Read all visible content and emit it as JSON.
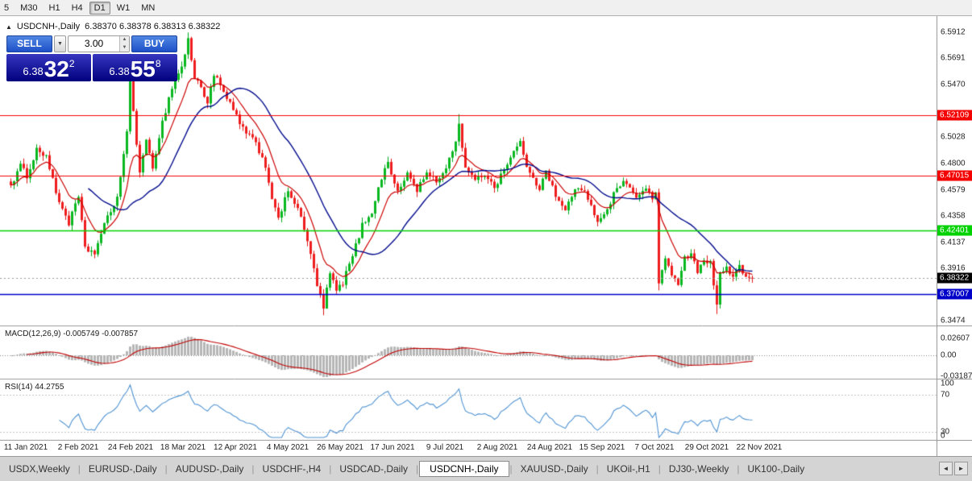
{
  "toolbar": {
    "timeframes": [
      {
        "label": "5",
        "active": false
      },
      {
        "label": "M30",
        "active": false
      },
      {
        "label": "H1",
        "active": false
      },
      {
        "label": "H4",
        "active": false
      },
      {
        "label": "D1",
        "active": true
      },
      {
        "label": "W1",
        "active": false
      },
      {
        "label": "MN",
        "active": false
      }
    ]
  },
  "chart_header": {
    "marker": "▲",
    "symbol": "USDCNH-,Daily",
    "ohlc": "6.38370 6.38378 6.38313 6.38322"
  },
  "trade_panel": {
    "sell_label": "SELL",
    "buy_label": "BUY",
    "volume": "3.00",
    "icons": {
      "dropdown": "▼",
      "up": "▲",
      "down": "▼"
    },
    "bid": {
      "small": "6.38",
      "big": "32",
      "sup": "2"
    },
    "ask": {
      "small": "6.38",
      "big": "55",
      "sup": "8"
    }
  },
  "price_axis": {
    "labels": [
      "6.5912",
      "6.5691",
      "6.5470",
      "6.5028",
      "6.4800",
      "6.4579",
      "6.4358",
      "6.4137",
      "6.3916",
      "6.3474"
    ]
  },
  "levels": [
    {
      "label": "6.52109",
      "value": 6.52109,
      "color": "#f40000",
      "width": 1.2
    },
    {
      "label": "6.47015",
      "value": 6.47015,
      "color": "#f40000",
      "width": 1.2
    },
    {
      "label": "6.42401",
      "value": 6.42401,
      "color": "#00d200",
      "width": 1.6
    },
    {
      "label": "6.37007",
      "value": 6.37007,
      "color": "#0000c8",
      "width": 1.6
    }
  ],
  "current_price": {
    "label": "6.38322",
    "value": 6.38322,
    "color": "#000000"
  },
  "macd": {
    "label": "MACD(12,26,9) -0.005749 -0.007857",
    "axis": [
      "0.02607",
      "0.00",
      "-0.03187"
    ],
    "axis_values": [
      0.02607,
      0,
      -0.03187
    ]
  },
  "rsi": {
    "label": "RSI(14) 44.2755",
    "axis": [
      "100",
      "70",
      "30",
      "0"
    ],
    "axis_values": [
      100,
      70,
      30,
      0
    ]
  },
  "date_axis": [
    "11 Jan 2021",
    "2 Feb 2021",
    "24 Feb 2021",
    "18 Mar 2021",
    "12 Apr 2021",
    "4 May 2021",
    "26 May 2021",
    "17 Jun 2021",
    "9 Jul 2021",
    "2 Aug 2021",
    "24 Aug 2021",
    "15 Sep 2021",
    "7 Oct 2021",
    "29 Oct 2021",
    "22 Nov 2021"
  ],
  "tabs": [
    {
      "label": "USDX,Weekly",
      "active": false
    },
    {
      "label": "EURUSD-,Daily",
      "active": false
    },
    {
      "label": "AUDUSD-,Daily",
      "active": false
    },
    {
      "label": "USDCHF-,H4",
      "active": false
    },
    {
      "label": "USDCAD-,Daily",
      "active": false
    },
    {
      "label": "USDCNH-,Daily",
      "active": true
    },
    {
      "label": "XAUUSD-,Daily",
      "active": false
    },
    {
      "label": "UKOil-,H1",
      "active": false
    },
    {
      "label": "DJ30-,Weekly",
      "active": false
    },
    {
      "label": "UK100-,Daily",
      "active": false
    }
  ],
  "tabbar_controls": {
    "left_arrow": "◄",
    "right_arrow": "►"
  },
  "chart_data": {
    "type": "candlestick",
    "symbol": "USDCNH-",
    "timeframe": "Daily",
    "visible_range": [
      6.3474,
      6.5912
    ],
    "anchors": [
      [
        0,
        6.462
      ],
      [
        3,
        6.478
      ],
      [
        5,
        6.47
      ],
      [
        8,
        6.492
      ],
      [
        11,
        6.487
      ],
      [
        14,
        6.455
      ],
      [
        18,
        6.43
      ],
      [
        21,
        6.452
      ],
      [
        23,
        6.408
      ],
      [
        26,
        6.405
      ],
      [
        29,
        6.428
      ],
      [
        33,
        6.452
      ],
      [
        36,
        6.505
      ],
      [
        37,
        6.552
      ],
      [
        38,
        6.525
      ],
      [
        40,
        6.472
      ],
      [
        42,
        6.498
      ],
      [
        44,
        6.478
      ],
      [
        47,
        6.515
      ],
      [
        50,
        6.545
      ],
      [
        53,
        6.562
      ],
      [
        55,
        6.585
      ],
      [
        57,
        6.552
      ],
      [
        59,
        6.545
      ],
      [
        61,
        6.532
      ],
      [
        63,
        6.556
      ],
      [
        66,
        6.54
      ],
      [
        70,
        6.52
      ],
      [
        73,
        6.505
      ],
      [
        76,
        6.498
      ],
      [
        79,
        6.478
      ],
      [
        81,
        6.452
      ],
      [
        83,
        6.432
      ],
      [
        86,
        6.458
      ],
      [
        89,
        6.442
      ],
      [
        92,
        6.415
      ],
      [
        95,
        6.378
      ],
      [
        97,
        6.358
      ],
      [
        99,
        6.388
      ],
      [
        101,
        6.372
      ],
      [
        103,
        6.38
      ],
      [
        106,
        6.402
      ],
      [
        109,
        6.428
      ],
      [
        112,
        6.44
      ],
      [
        115,
        6.468
      ],
      [
        117,
        6.482
      ],
      [
        120,
        6.455
      ],
      [
        123,
        6.472
      ],
      [
        126,
        6.458
      ],
      [
        129,
        6.472
      ],
      [
        132,
        6.465
      ],
      [
        134,
        6.472
      ],
      [
        137,
        6.49
      ],
      [
        139,
        6.512
      ],
      [
        141,
        6.478
      ],
      [
        144,
        6.465
      ],
      [
        147,
        6.472
      ],
      [
        150,
        6.46
      ],
      [
        153,
        6.476
      ],
      [
        156,
        6.49
      ],
      [
        158,
        6.498
      ],
      [
        161,
        6.47
      ],
      [
        164,
        6.46
      ],
      [
        166,
        6.476
      ],
      [
        169,
        6.452
      ],
      [
        172,
        6.44
      ],
      [
        175,
        6.46
      ],
      [
        178,
        6.455
      ],
      [
        182,
        6.432
      ],
      [
        185,
        6.442
      ],
      [
        188,
        6.46
      ],
      [
        191,
        6.465
      ],
      [
        194,
        6.45
      ],
      [
        197,
        6.46
      ],
      [
        199,
        6.452
      ],
      [
        200,
        6.455
      ],
      [
        201,
        6.378
      ],
      [
        203,
        6.398
      ],
      [
        205,
        6.388
      ],
      [
        207,
        6.38
      ],
      [
        209,
        6.4
      ],
      [
        211,
        6.405
      ],
      [
        213,
        6.39
      ],
      [
        215,
        6.396
      ],
      [
        217,
        6.4
      ],
      [
        218,
        6.378
      ],
      [
        219,
        6.362
      ],
      [
        220,
        6.386
      ],
      [
        222,
        6.392
      ],
      [
        224,
        6.384
      ],
      [
        226,
        6.392
      ],
      [
        228,
        6.385
      ],
      [
        230,
        6.3832
      ]
    ],
    "wick_overrides": {
      "37": {
        "h": 6.573
      },
      "38": {
        "h": 6.562
      },
      "55": {
        "h": 6.591
      },
      "97": {
        "l": 6.352
      },
      "139": {
        "h": 6.522
      },
      "201": {
        "h": 6.459,
        "l": 6.373
      },
      "219": {
        "l": 6.353
      }
    },
    "colors": {
      "up": "#09b81f",
      "up_border": "#00a81e",
      "down": "#ef1d1d",
      "down_border": "#e01616",
      "ma_fast": "#cc0000",
      "ma_slow": "#000a8c",
      "macd_hist": "#b6b6b6",
      "macd_signal": "#c00000",
      "rsi_line": "#4f93d2"
    }
  }
}
